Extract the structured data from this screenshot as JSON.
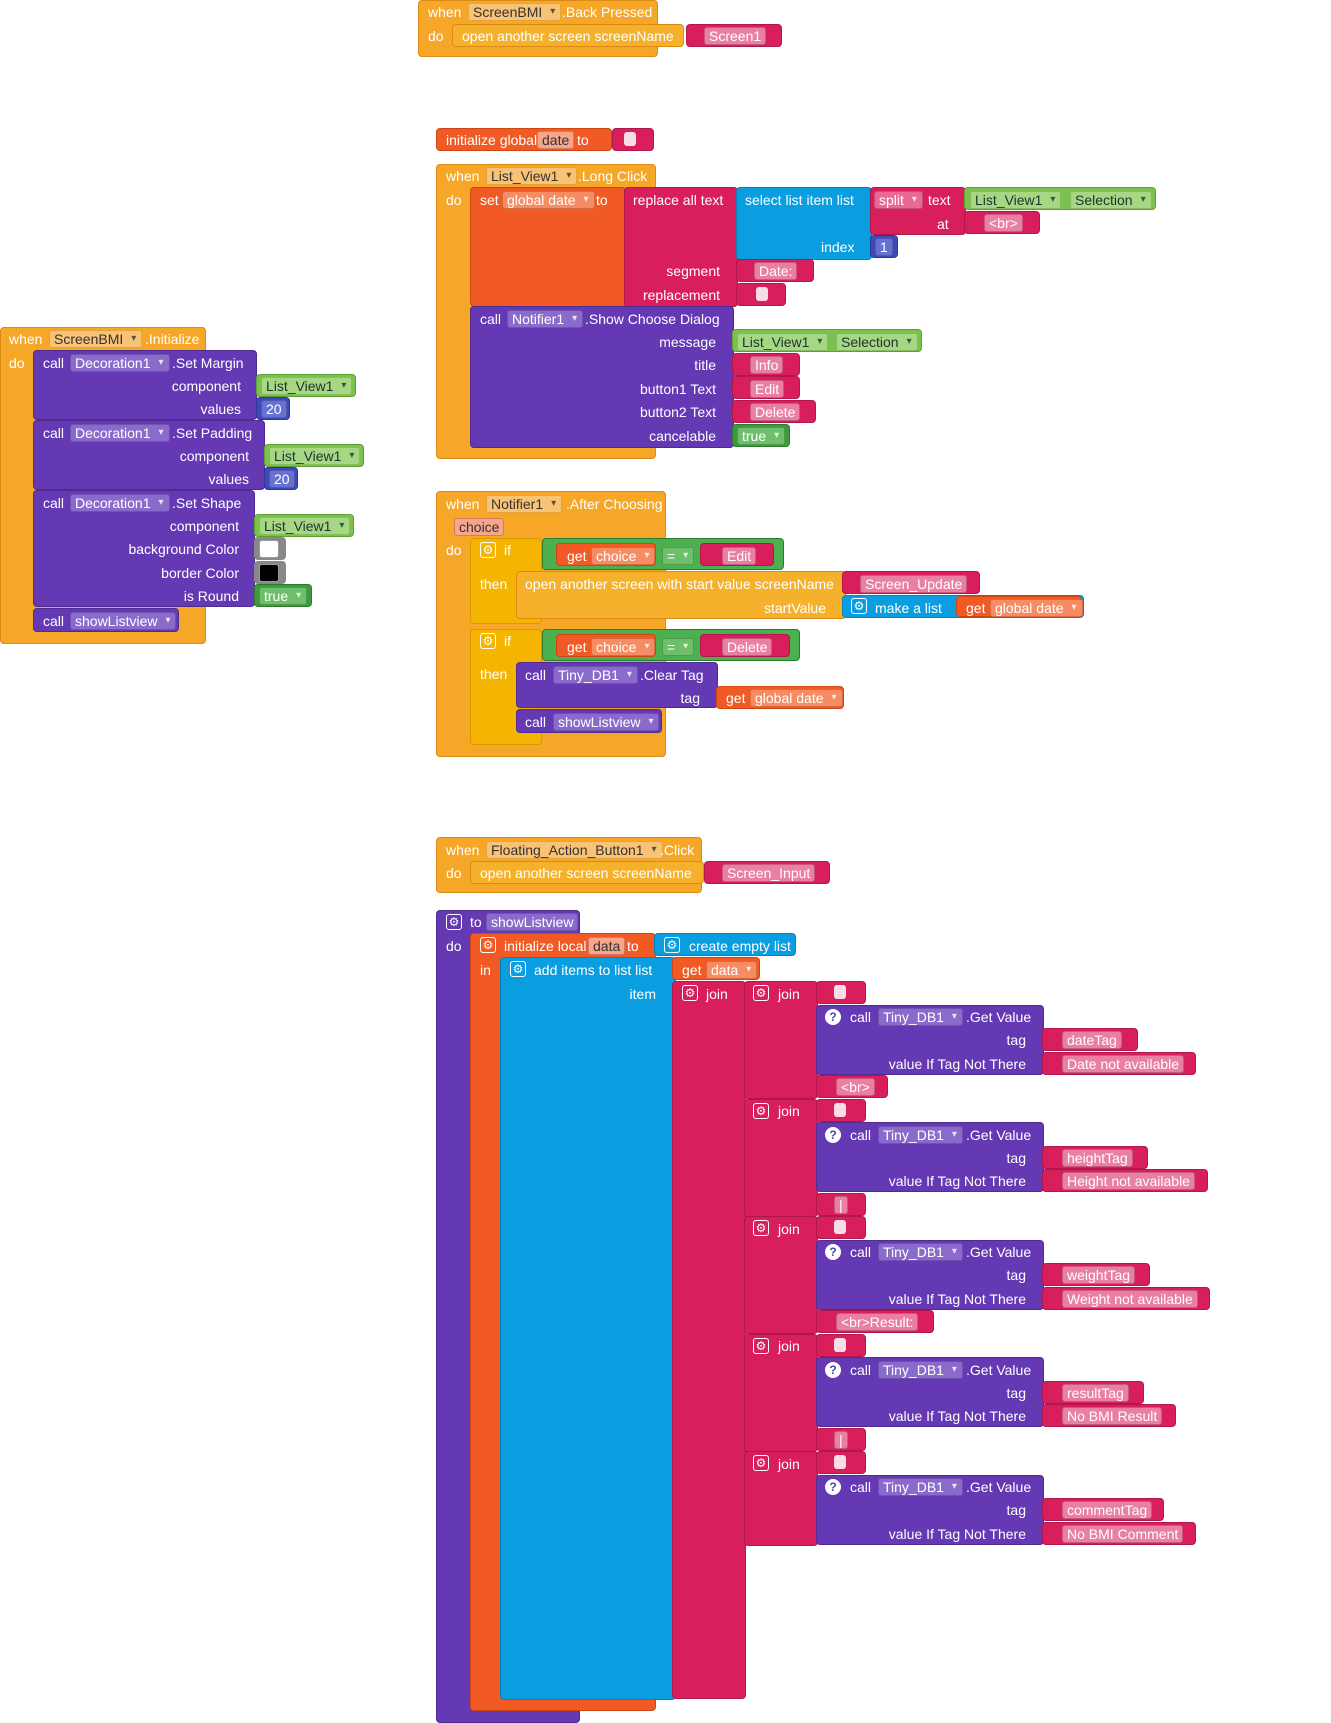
{
  "kw": {
    "when": "when",
    "do": "do",
    "call": "call",
    "set": "set",
    "to": "to",
    "in": "in",
    "get": "get",
    "if": "if",
    "then": "then",
    "join": "join",
    "initialize_global": "initialize global",
    "initialize_local": "initialize local",
    "at": "at",
    "index": "index",
    "text": "text",
    "list": "list",
    "item": "item"
  },
  "back_pressed": {
    "component": "ScreenBMI",
    "event": ".Back Pressed",
    "action": "open another screen  screenName",
    "screen": "Screen1"
  },
  "init_global": {
    "name": "date",
    "value": ""
  },
  "long_click": {
    "component": "List_View1",
    "event": ".Long Click",
    "target": "global date",
    "replace": "replace all text",
    "select": "select list item  list",
    "split": "split",
    "sel_comp": "List_View1",
    "sel_prop": "Selection",
    "at_value": "<br>",
    "index_value": "1",
    "segment_label": "segment",
    "segment_value": "Date: ",
    "replacement_label": "replacement",
    "replacement_value": "",
    "dialog_comp": "Notifier1",
    "dialog_method": ".Show Choose Dialog",
    "message_label": "message",
    "msg_comp": "List_View1",
    "msg_prop": "Selection",
    "title_label": "title",
    "title_value": "Info",
    "b1_label": "button1 Text",
    "b1_value": "Edit",
    "b2_label": "button2 Text",
    "b2_value": "Delete",
    "cancel_label": "cancelable",
    "cancel_value": "true"
  },
  "initialize": {
    "component": "ScreenBMI",
    "event": ".Initialize",
    "deco": "Decoration1",
    "margin": ".Set Margin",
    "padding": ".Set Padding",
    "shape": ".Set Shape",
    "component_label": "component",
    "values_label": "values",
    "list_view": "List_View1",
    "value_20": "20",
    "bg_label": "background Color",
    "bg_color": "#FFFFFF",
    "border_label": "border Color",
    "border_color": "#000000",
    "round_label": "is Round",
    "round_value": "true",
    "show_proc": "showListview"
  },
  "after_choosing": {
    "component": "Notifier1",
    "event": ".After Choosing",
    "param": "choice",
    "eq": "=",
    "v_edit": "Edit",
    "open_start": "open another screen with start value  screenName",
    "screen": "Screen_Update",
    "startvalue_label": "startValue",
    "make_list": "make a list",
    "global_date": "global date",
    "v_delete": "Delete",
    "db": "Tiny_DB1",
    "clear": ".Clear Tag",
    "tag_label": "tag",
    "show_proc": "showListview"
  },
  "fab_click": {
    "component": "Floating_Action_Button1",
    "event": ".Click",
    "action": "open another screen  screenName",
    "screen": "Screen_Input"
  },
  "proc": {
    "name": "showListview",
    "local_name": "data",
    "create_empty": "create empty list",
    "add_items": "add items to list   list",
    "db": "Tiny_DB1",
    "get_value": ".Get Value",
    "tag_label": "tag",
    "value_label": "value If Tag Not There",
    "date_tag": "dateTag",
    "date_na": "Date not available",
    "br": "<br>",
    "height_tag": "heightTag",
    "height_na": "Height not available",
    "sep1": "|",
    "weight_tag": "weightTag",
    "weight_na": "Weight not available",
    "br_result": "<br>Result: ",
    "result_tag": "resultTag",
    "result_na": "No BMI Result",
    "sep2": "|",
    "comment_tag": "commentTag",
    "comment_na": "No BMI Comment"
  }
}
